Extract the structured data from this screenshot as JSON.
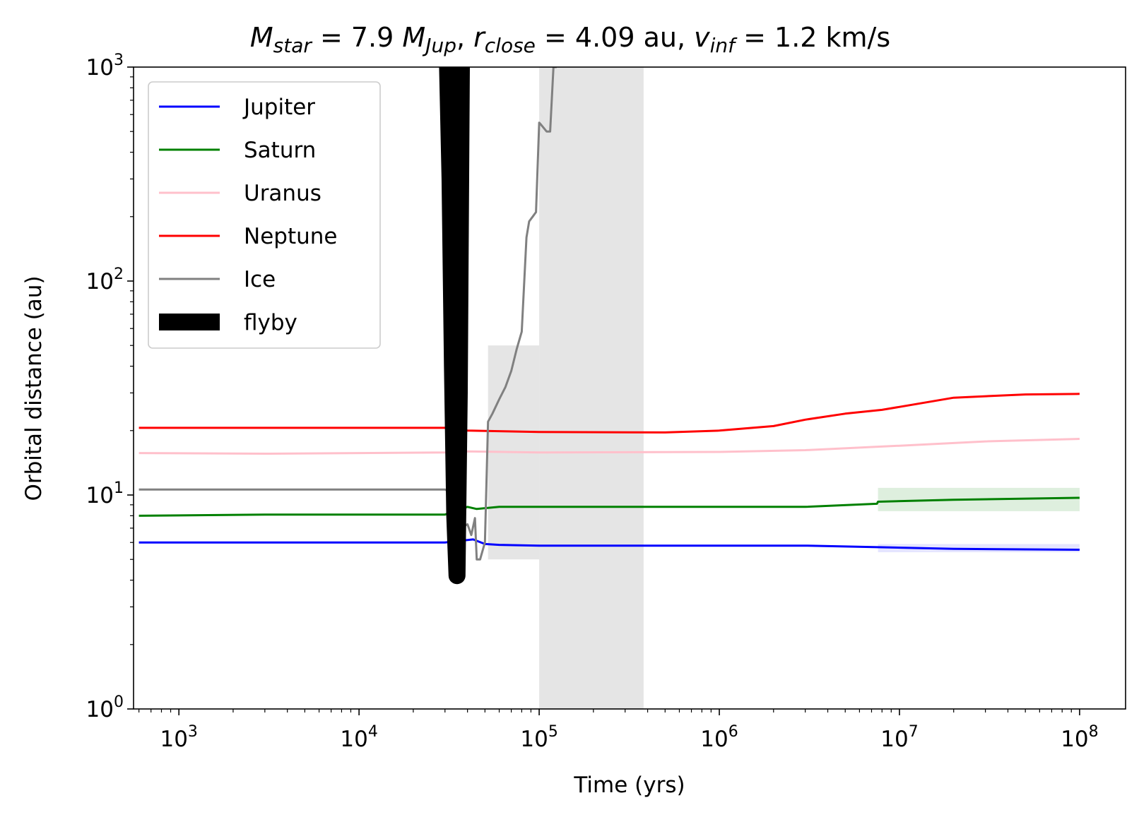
{
  "chart_data": {
    "type": "line",
    "title": {
      "m_sym": "M",
      "m_sub": "star",
      "m_val": " = 7.9 ",
      "mj_sym": "M",
      "mj_sub": "Jup",
      "sep1": ", ",
      "r_sym": "r",
      "r_sub": "close",
      "r_val": " = 4.09 au",
      "sep2": ", ",
      "v_sym": "v",
      "v_sub": "inf",
      "v_val": " = 1.2 km/s"
    },
    "xlabel": "Time (yrs)",
    "ylabel": "Orbital distance (au)",
    "xscale": "log",
    "yscale": "log",
    "xlim": [
      560,
      180000000
    ],
    "ylim": [
      1,
      1000
    ],
    "x_ticks": [
      {
        "value": 1000,
        "base": "10",
        "exp": "3"
      },
      {
        "value": 10000,
        "base": "10",
        "exp": "4"
      },
      {
        "value": 100000,
        "base": "10",
        "exp": "5"
      },
      {
        "value": 1000000,
        "base": "10",
        "exp": "6"
      },
      {
        "value": 10000000,
        "base": "10",
        "exp": "7"
      },
      {
        "value": 100000000,
        "base": "10",
        "exp": "8"
      }
    ],
    "y_ticks": [
      {
        "value": 1,
        "base": "10",
        "exp": "0"
      },
      {
        "value": 10,
        "base": "10",
        "exp": "1"
      },
      {
        "value": 100,
        "base": "10",
        "exp": "2"
      },
      {
        "value": 1000,
        "base": "10",
        "exp": "3"
      }
    ],
    "legend": {
      "position": "upper-left"
    },
    "series": [
      {
        "name": "Jupiter",
        "color": "#0000ff",
        "x": [
          600,
          3000,
          10000,
          30000,
          43000,
          50000,
          60000,
          100000,
          1000000,
          3000000,
          8000000,
          20000000,
          100000000
        ],
        "y": [
          6.0,
          6.0,
          6.0,
          6.0,
          6.2,
          5.9,
          5.85,
          5.8,
          5.8,
          5.8,
          5.7,
          5.6,
          5.55
        ]
      },
      {
        "name": "Saturn",
        "color": "#008000",
        "x": [
          600,
          3000,
          10000,
          30000,
          40000,
          45000,
          60000,
          100000,
          1000000,
          3000000,
          7500000,
          7600000,
          20000000,
          100000000
        ],
        "y": [
          8.0,
          8.1,
          8.1,
          8.1,
          8.8,
          8.6,
          8.8,
          8.8,
          8.8,
          8.8,
          9.1,
          9.3,
          9.5,
          9.7
        ]
      },
      {
        "name": "Uranus",
        "color": "#ffc0cb",
        "x": [
          600,
          3000,
          10000,
          30000,
          40000,
          100000,
          1000000,
          3000000,
          10000000,
          30000000,
          100000000
        ],
        "y": [
          15.7,
          15.6,
          15.7,
          15.8,
          16.0,
          15.8,
          15.9,
          16.2,
          17.0,
          17.8,
          18.3
        ]
      },
      {
        "name": "Neptune",
        "color": "#ff0000",
        "x": [
          600,
          3000,
          10000,
          30000,
          40000,
          100000,
          500000,
          1000000,
          2000000,
          3000000,
          5000000,
          8000000,
          12000000,
          20000000,
          50000000,
          100000000
        ],
        "y": [
          20.6,
          20.6,
          20.6,
          20.6,
          20.0,
          19.7,
          19.6,
          20.0,
          21.0,
          22.5,
          24.0,
          25.0,
          26.5,
          28.5,
          29.5,
          29.7
        ]
      },
      {
        "name": "Ice",
        "color": "#808080",
        "x": [
          600,
          3000,
          10000,
          30000,
          35000,
          37000,
          40000,
          42000,
          44000,
          45000,
          47000,
          50000,
          52000,
          55000,
          60000,
          65000,
          70000,
          75000,
          80000,
          85000,
          88000,
          92000,
          96000,
          100000,
          102000,
          110000,
          115000,
          120000,
          125000
        ],
        "y": [
          10.6,
          10.6,
          10.6,
          10.6,
          10.0,
          7.0,
          7.3,
          6.5,
          7.8,
          5.0,
          5.0,
          6.0,
          22.0,
          24.0,
          28.0,
          32.0,
          38.0,
          48.0,
          58.0,
          160.0,
          190.0,
          200.0,
          210.0,
          550.0,
          540.0,
          500.0,
          500.0,
          1000.0,
          1000.0
        ]
      },
      {
        "name": "flyby",
        "color": "#000000",
        "x": [
          31000,
          32000,
          33000,
          34000,
          35000,
          36000,
          37000
        ],
        "y": [
          1000,
          300,
          40,
          8.0,
          4.2,
          30,
          1000
        ]
      }
    ]
  }
}
